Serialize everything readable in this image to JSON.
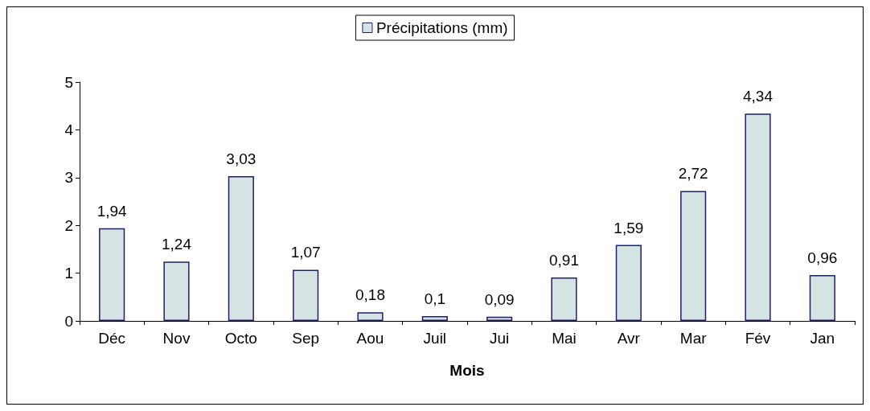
{
  "chart_data": {
    "type": "bar",
    "xlabel": "Mois",
    "categories": [
      "Déc",
      "Nov",
      "Octo",
      "Sep",
      "Aou",
      "Juil",
      "Jui",
      "Mai",
      "Avr",
      "Mar",
      "Fév",
      "Jan"
    ],
    "series": [
      {
        "name": "Précipitations (mm)",
        "color": "#d6e3e3",
        "values": [
          1.94,
          1.24,
          3.03,
          1.07,
          0.18,
          0.1,
          0.09,
          0.91,
          1.59,
          2.72,
          4.34,
          0.96
        ],
        "value_labels": [
          "1,94",
          "1,24",
          "3,03",
          "1,07",
          "0,18",
          "0,1",
          "0,09",
          "0,91",
          "1,59",
          "2,72",
          "4,34",
          "0,96"
        ]
      }
    ],
    "ylim": [
      0,
      5
    ],
    "yticks": [
      0,
      1,
      2,
      3,
      4,
      5
    ],
    "grid": false,
    "legend": "top"
  }
}
